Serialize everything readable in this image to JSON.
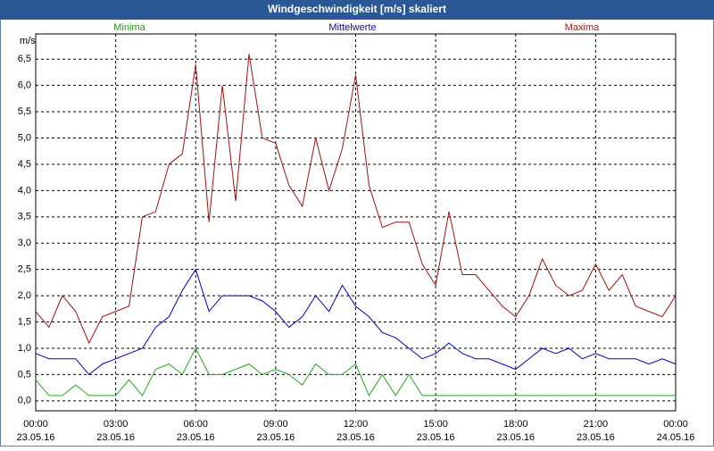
{
  "chart_data": {
    "type": "line",
    "title": "Windgeschwindigkeit [m/s] skaliert",
    "y_label": "m/s",
    "x": [
      0,
      0.5,
      1,
      1.5,
      2,
      2.5,
      3,
      3.5,
      4,
      4.5,
      5,
      5.5,
      6,
      6.5,
      7,
      7.5,
      8,
      8.5,
      9,
      9.5,
      10,
      10.5,
      11,
      11.5,
      12,
      12.5,
      13,
      13.5,
      14,
      14.5,
      15,
      15.5,
      16,
      16.5,
      17,
      17.5,
      18,
      18.5,
      19,
      19.5,
      20,
      20.5,
      21,
      21.5,
      22,
      22.5,
      23,
      23.5,
      24
    ],
    "series": [
      {
        "name": "Minima",
        "color": "#1faa1f",
        "label_color": "#1a9a1a",
        "values": [
          0.4,
          0.1,
          0.1,
          0.3,
          0.1,
          0.1,
          0.1,
          0.4,
          0.1,
          0.6,
          0.7,
          0.5,
          1.0,
          0.5,
          0.5,
          0.6,
          0.7,
          0.5,
          0.6,
          0.5,
          0.3,
          0.7,
          0.5,
          0.5,
          0.7,
          0.1,
          0.5,
          0.1,
          0.5,
          0.1,
          0.1,
          0.1,
          0.1,
          0.1,
          0.1,
          0.1,
          0.1,
          0.1,
          0.1,
          0.1,
          0.1,
          0.1,
          0.1,
          0.1,
          0.1,
          0.1,
          0.1,
          0.1,
          0.1
        ]
      },
      {
        "name": "Mittelwerte",
        "color": "#0000c0",
        "label_color": "#10108a",
        "values": [
          0.9,
          0.8,
          0.8,
          0.8,
          0.5,
          0.7,
          0.8,
          0.9,
          1.0,
          1.4,
          1.6,
          2.1,
          2.5,
          1.7,
          2.0,
          2.0,
          2.0,
          1.9,
          1.7,
          1.4,
          1.6,
          2.0,
          1.7,
          2.2,
          1.8,
          1.6,
          1.3,
          1.2,
          1.0,
          0.8,
          0.9,
          1.1,
          0.9,
          0.8,
          0.8,
          0.7,
          0.6,
          0.8,
          1.0,
          0.9,
          1.0,
          0.8,
          0.9,
          0.8,
          0.8,
          0.8,
          0.7,
          0.8,
          0.7
        ]
      },
      {
        "name": "Maxima",
        "color": "#a01010",
        "label_color": "#a02020",
        "values": [
          1.7,
          1.4,
          2.0,
          1.7,
          1.1,
          1.6,
          1.7,
          1.8,
          3.5,
          3.6,
          4.5,
          4.7,
          6.4,
          3.4,
          6.0,
          3.8,
          6.6,
          5.0,
          4.9,
          4.1,
          3.7,
          5.0,
          4.0,
          4.8,
          6.2,
          4.1,
          3.3,
          3.4,
          3.4,
          2.6,
          2.2,
          3.6,
          2.4,
          2.4,
          2.1,
          1.8,
          1.6,
          2.0,
          2.7,
          2.2,
          2.0,
          2.1,
          2.6,
          2.1,
          2.4,
          1.8,
          1.7,
          1.6,
          2.0
        ]
      }
    ],
    "xlim": [
      0,
      24
    ],
    "xticks": [
      {
        "value": 0,
        "label": "00:00",
        "date": "23.05.16"
      },
      {
        "value": 3,
        "label": "03:00",
        "date": "23.05.16"
      },
      {
        "value": 6,
        "label": "06:00",
        "date": "23.05.16"
      },
      {
        "value": 9,
        "label": "09:00",
        "date": "23.05.16"
      },
      {
        "value": 12,
        "label": "12:00",
        "date": "23.05.16"
      },
      {
        "value": 15,
        "label": "15:00",
        "date": "23.05.16"
      },
      {
        "value": 18,
        "label": "18:00",
        "date": "23.05.16"
      },
      {
        "value": 21,
        "label": "21:00",
        "date": "23.05.16"
      },
      {
        "value": 24,
        "label": "00:00",
        "date": "24.05.16"
      }
    ],
    "ylim": [
      -0.19,
      6.98
    ],
    "yticks": [
      {
        "value": 0,
        "label": "0,0"
      },
      {
        "value": 0.5,
        "label": "0,5"
      },
      {
        "value": 1,
        "label": "1,0"
      },
      {
        "value": 1.5,
        "label": "1,5"
      },
      {
        "value": 2,
        "label": "2,0"
      },
      {
        "value": 2.5,
        "label": "2,5"
      },
      {
        "value": 3,
        "label": "3,0"
      },
      {
        "value": 3.5,
        "label": "3,5"
      },
      {
        "value": 4,
        "label": "4,0"
      },
      {
        "value": 4.5,
        "label": "4,5"
      },
      {
        "value": 5,
        "label": "5,0"
      },
      {
        "value": 5.5,
        "label": "5,5"
      },
      {
        "value": 6,
        "label": "6,0"
      },
      {
        "value": 6.5,
        "label": "6,5"
      }
    ],
    "grid": true
  }
}
